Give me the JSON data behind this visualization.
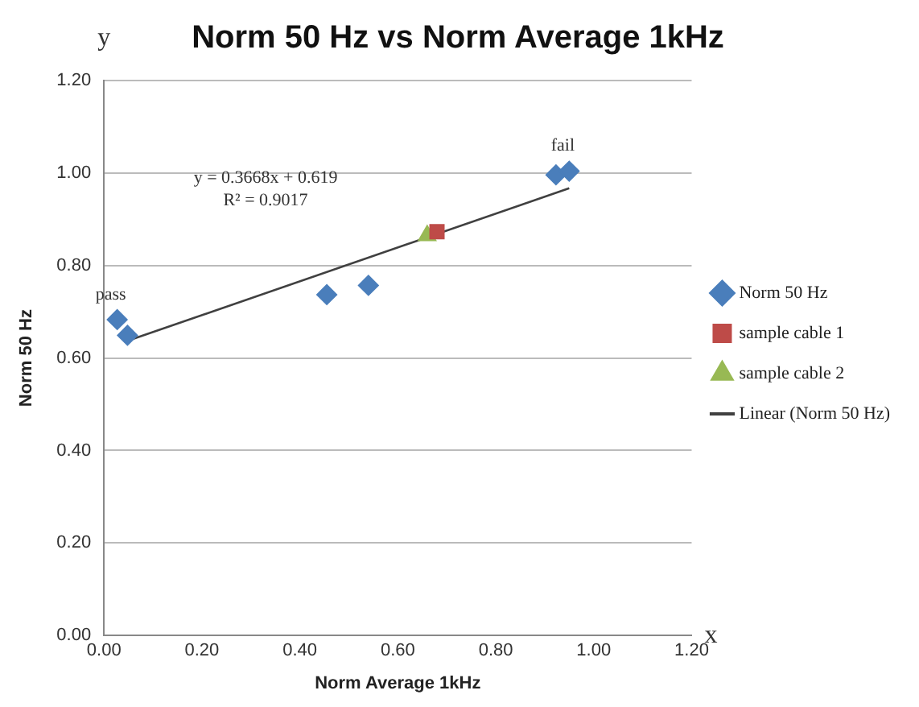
{
  "chart_data": {
    "type": "scatter",
    "title": "Norm 50 Hz vs Norm Average 1kHz",
    "xlabel": "Norm Average 1kHz",
    "ylabel": "Norm 50 Hz",
    "xlim": [
      0,
      1.2
    ],
    "ylim": [
      0,
      1.2
    ],
    "xticks": [
      {
        "value": 0,
        "label": "0.00"
      },
      {
        "value": 0.2,
        "label": "0.20"
      },
      {
        "value": 0.4,
        "label": "0.40"
      },
      {
        "value": 0.6,
        "label": "0.60"
      },
      {
        "value": 0.8,
        "label": "0.80"
      },
      {
        "value": 1,
        "label": "1.00"
      },
      {
        "value": 1.2,
        "label": "1.20"
      }
    ],
    "yticks": [
      {
        "value": 0,
        "label": "0.00"
      },
      {
        "value": 0.2,
        "label": "0.20"
      },
      {
        "value": 0.4,
        "label": "0.40"
      },
      {
        "value": 0.6,
        "label": "0.60"
      },
      {
        "value": 0.8,
        "label": "0.80"
      },
      {
        "value": 1,
        "label": "1.00"
      },
      {
        "value": 1.2,
        "label": "1.20"
      }
    ],
    "grid": "y",
    "legend": "right",
    "series": [
      {
        "name": "Norm 50 Hz",
        "color": "#4a7ebb",
        "marker": "diamond",
        "x": [
          0.027,
          0.048,
          0.455,
          0.54,
          0.923,
          0.95
        ],
        "values": [
          0.683,
          0.649,
          0.737,
          0.757,
          0.996,
          1.004
        ]
      },
      {
        "name": "sample cable 1",
        "color": "#be4b48",
        "marker": "square",
        "x": [
          0.68
        ],
        "values": [
          0.873
        ]
      },
      {
        "name": "sample cable 2",
        "color": "#98b954",
        "marker": "triangle",
        "x": [
          0.66
        ],
        "values": [
          0.865
        ]
      },
      {
        "name": "Linear (Norm 50 Hz)",
        "type": "line",
        "color": "#404040",
        "marker": "none",
        "x": [
          0.048,
          0.95
        ],
        "values": [
          0.637,
          0.967
        ]
      }
    ],
    "annotations": [
      {
        "text": "pass",
        "x": 0.027,
        "y": 0.683
      },
      {
        "text": "fail",
        "x": 0.95,
        "y": 1.004
      },
      "y = 0.3668x + 0.619",
      "R² = 0.9017",
      "x",
      "y"
    ]
  }
}
